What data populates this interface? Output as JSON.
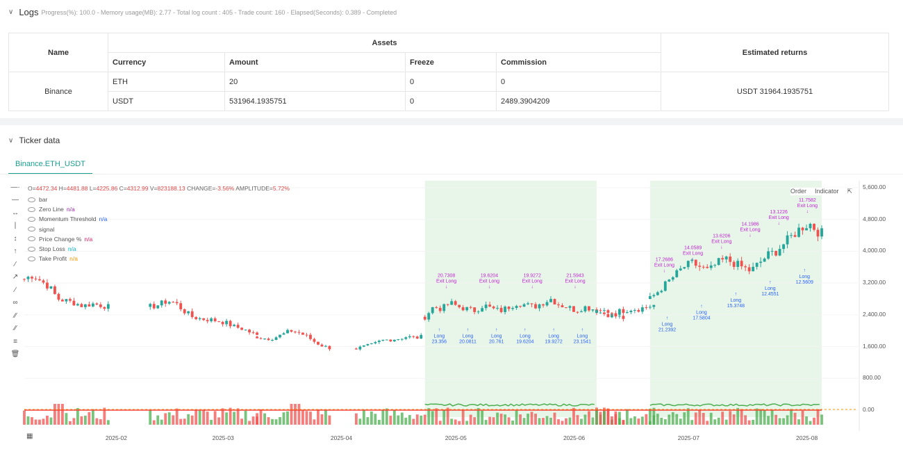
{
  "logs": {
    "title": "Logs",
    "summary": "Progress(%): 100.0 - Memory usage(MB): 2.77 - Total log count : 405 - Trade count: 160 - Elapsed(Seconds): 0.389 - Completed"
  },
  "assets_table": {
    "name_header": "Name",
    "assets_header": "Assets",
    "returns_header": "Estimated returns",
    "columns": [
      "Currency",
      "Amount",
      "Freeze",
      "Commission"
    ],
    "exchange": "Binance",
    "rows": [
      {
        "currency": "ETH",
        "amount": "20",
        "freeze": "0",
        "commission": "0"
      },
      {
        "currency": "USDT",
        "amount": "531964.1935751",
        "freeze": "0",
        "commission": "2489.3904209"
      }
    ],
    "estimated_returns": "USDT 31964.1935751"
  },
  "ticker": {
    "title": "Ticker data",
    "tab": "Binance.ETH_USDT",
    "ohlc": {
      "o": "4472.34",
      "h": "4481.88",
      "l": "4225.86",
      "c": "4312.99",
      "v": "823188.13",
      "change": "-3.56%",
      "amplitude": "5.72%"
    },
    "ohlc_labels": {
      "o": "O=",
      "h": " H=",
      "l": " L=",
      "c": " C=",
      "v": " V=",
      "change": " CHANGE=",
      "amplitude": " AMPLITUDE="
    },
    "legend": [
      {
        "name": "bar",
        "value": ""
      },
      {
        "name": "Zero Line",
        "value": "n/a",
        "color": "#9c27b0"
      },
      {
        "name": "Momentum Threshold",
        "value": "n/a",
        "color": "#2962ff"
      },
      {
        "name": "signal",
        "value": ""
      },
      {
        "name": "Price Change %",
        "value": "n/a",
        "color": "#e91e63"
      },
      {
        "name": "Stop Loss",
        "value": "n/a",
        "color": "#00bcd4"
      },
      {
        "name": "Take Profit",
        "value": "n/a",
        "color": "#ff9800"
      }
    ],
    "order_btn": "Order",
    "indicator_btn": "Indicator",
    "y_ticks": [
      "5,600.00",
      "4,800.00",
      "4,000.00",
      "3,200.00",
      "2,400.00",
      "1,600.00",
      "800.00",
      "0.00"
    ],
    "x_ticks": [
      "2025-02",
      "2025-03",
      "2025-04",
      "2025-05",
      "2025-06",
      "2025-07",
      "2025-08"
    ],
    "colors": {
      "up": "#26a69a",
      "down": "#ef5350",
      "long": "#2962ff",
      "exit": "#c026d3",
      "highlight": "#e8f5e9",
      "momentum": "#4caf50",
      "price_line": "#f44336"
    }
  },
  "chart_data": {
    "type": "candlestick",
    "symbol": "Binance.ETH_USDT",
    "x_range": [
      "2025-01-08",
      "2025-08-05"
    ],
    "y_range": [
      0,
      5800
    ],
    "segments": [
      {
        "start": "2025-01-08",
        "points": [
          3300,
          3400,
          3250,
          3100,
          2800,
          2750,
          2700,
          2620,
          2680,
          2650,
          2600
        ]
      },
      {
        "start": "2025-02-10",
        "points": [
          2600,
          2650,
          2750,
          2700,
          2500,
          2350,
          2300,
          2280,
          2250,
          2200,
          2100,
          2050,
          1950,
          1850
        ]
      },
      {
        "start": "2025-03-10",
        "points": [
          1850,
          1800,
          1820,
          1900,
          2000,
          1950,
          1850,
          1700,
          1600,
          1550
        ]
      },
      {
        "start": "2025-04-05",
        "points": [
          1550,
          1600,
          1650,
          1750,
          1780,
          1800,
          1850,
          1820,
          1850
        ]
      },
      {
        "start": "2025-04-23",
        "points": [
          2350,
          2600,
          2550,
          2700,
          2600,
          2550,
          2500,
          2650,
          2550,
          2500,
          2600,
          2700,
          2650,
          2600,
          2700,
          2800,
          2650,
          2600,
          2500,
          2600,
          2550,
          2450,
          2400,
          2350,
          2300
        ]
      },
      {
        "start": "2025-06-07",
        "points": [
          2450,
          2500,
          2450,
          2500,
          2550,
          2550,
          2600,
          2650
        ]
      },
      {
        "start": "2025-06-21",
        "points": [
          2800,
          3000,
          3200,
          3400,
          3600,
          3700,
          3600,
          3500,
          3700,
          3800,
          3700,
          3600,
          3500,
          3700,
          3900,
          4000,
          4200,
          4400,
          4600,
          4700,
          4500,
          4400,
          4300
        ]
      }
    ],
    "volume_spikes": [
      "2025-01-17",
      "2025-03-20"
    ],
    "signal_windows": [
      [
        "2025-04-23",
        "2025-06-07"
      ],
      [
        "2025-06-21",
        "2025-08-05"
      ]
    ],
    "signals": {
      "long": [
        "23.356",
        "20.0811",
        "20.761",
        "19.6204",
        "19.9272",
        "23.1541",
        "21.2392",
        "17.5804",
        "15.3748",
        "12.4551",
        "12.5609"
      ],
      "exit_long": [
        "20.7308",
        "19.6204",
        "19.9272",
        "21.5943",
        "17.2686",
        "14.0589",
        "13.6206",
        "14.1986",
        "13.1226",
        "11.7582"
      ]
    }
  }
}
